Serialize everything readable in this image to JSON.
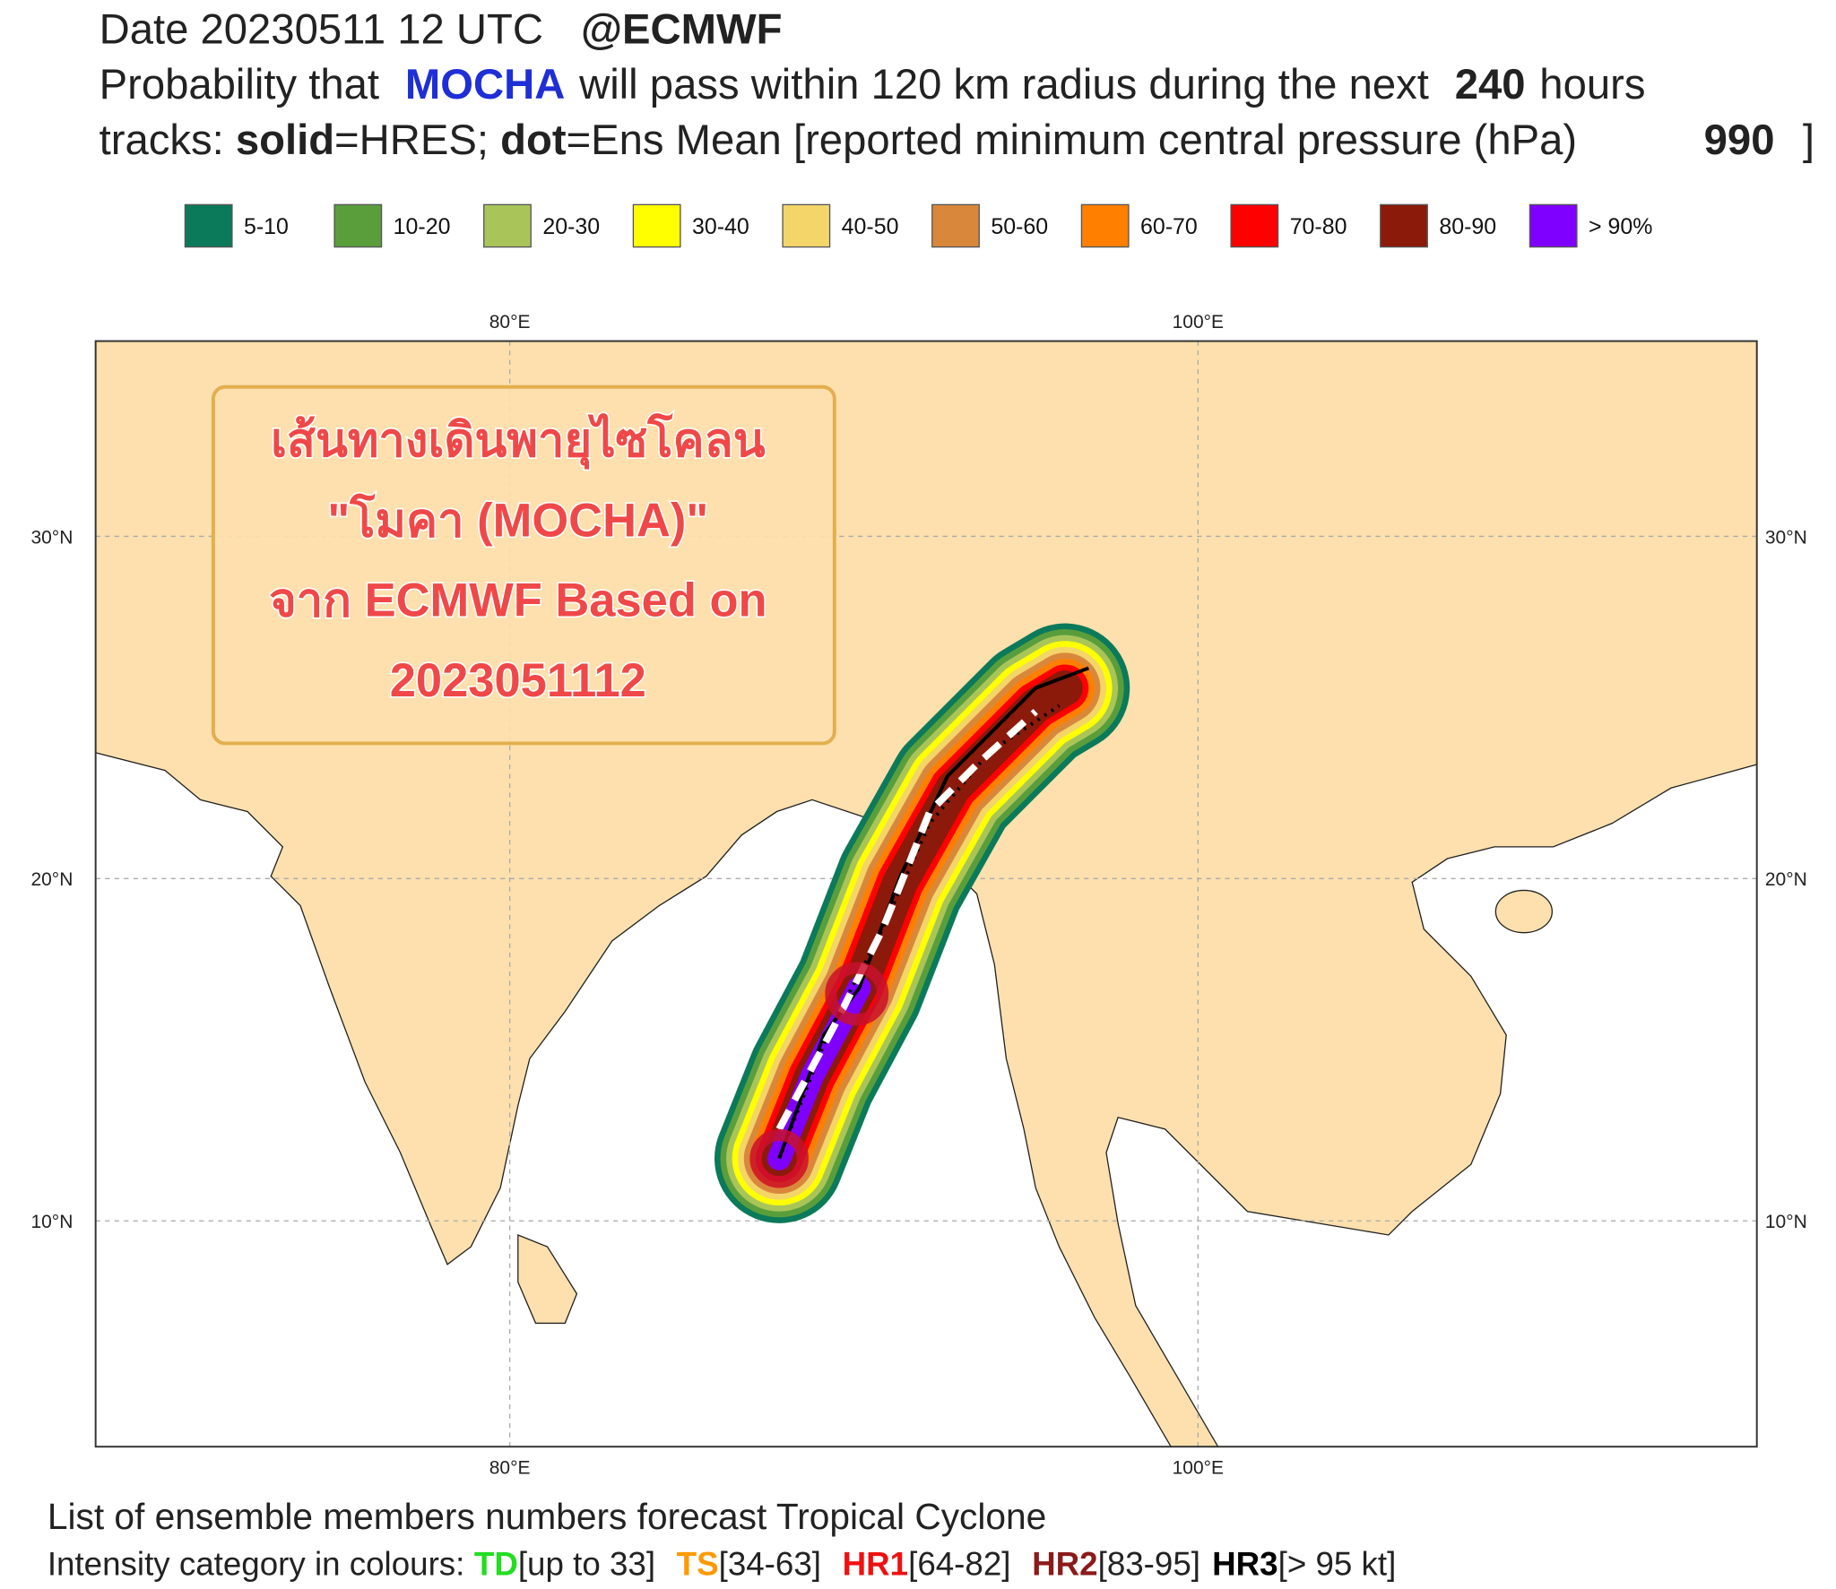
{
  "header": {
    "date": "Date 20230511 12 UTC",
    "source": "@ECMWF",
    "probability": {
      "prefix": "Probability that",
      "storm": "MOCHA",
      "middle": "will pass within 120 km radius during the next",
      "hours": "240",
      "suffix": "hours"
    },
    "tracks": {
      "prefix": "tracks:",
      "solid": "solid",
      "solid_text": "=HRES;",
      "dot": "dot",
      "dot_text": "=Ens Mean [reported minimum central pressure (hPa)",
      "pressure": "990",
      "close": "]"
    }
  },
  "legend": [
    {
      "label": "5-10",
      "color": "#0b7a5a"
    },
    {
      "label": "10-20",
      "color": "#5a9e3c"
    },
    {
      "label": "20-30",
      "color": "#a9c55a"
    },
    {
      "label": "30-40",
      "color": "#ffff00"
    },
    {
      "label": "40-50",
      "color": "#f3d56a"
    },
    {
      "label": "50-60",
      "color": "#d9883b"
    },
    {
      "label": "60-70",
      "color": "#ff7f00"
    },
    {
      "label": "70-80",
      "color": "#ff0000"
    },
    {
      "label": "80-90",
      "color": "#8b1a0a"
    },
    {
      "label": "> 90%",
      "color": "#8000ff"
    }
  ],
  "map": {
    "lon_labels": [
      "80°E",
      "100°E"
    ],
    "lat_labels": [
      "30°N",
      "20°N",
      "10°N"
    ],
    "overlay": [
      "เส้นทางเดินพายุไซโคลน",
      "\"โมคา (MOCHA)\"",
      "จาก ECMWF Based on",
      "2023051112"
    ]
  },
  "footer": {
    "title": "List of ensemble members numbers forecast Tropical Cyclone",
    "intensity": {
      "prefix": "Intensity category in colours:",
      "td": "TD",
      "td_range": "[up to 33]",
      "ts": "TS",
      "ts_range": "[34-63]",
      "hr1": "HR1",
      "hr1_range": "[64-82]",
      "hr2": "HR2",
      "hr2_range": "[83-95]",
      "hr3": "HR3",
      "hr3_range": "[> 95 kt]"
    }
  }
}
